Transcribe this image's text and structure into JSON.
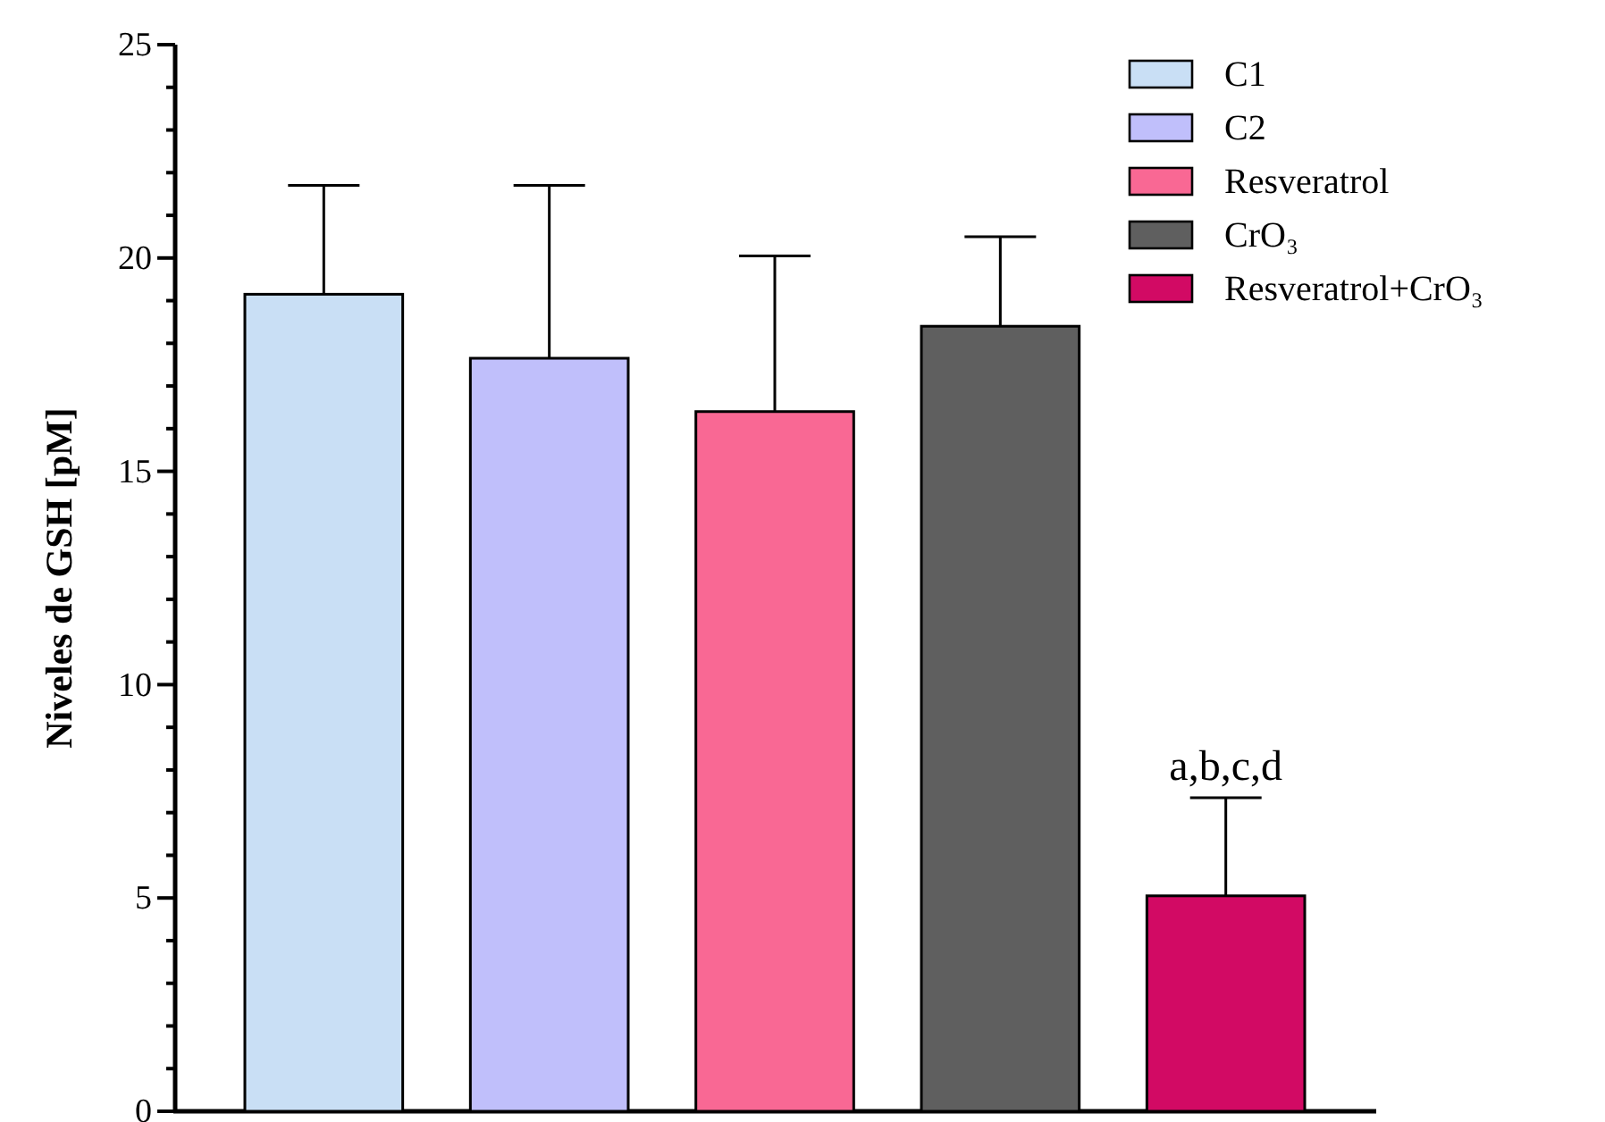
{
  "chart_data": {
    "type": "bar",
    "ylabel": "Niveles de GSH [pM]",
    "categories": [
      null,
      null,
      null,
      null,
      null
    ],
    "series": [
      {
        "name": "C1",
        "color": "#c9dff5",
        "values": [
          19.15,
          null,
          null,
          null,
          null
        ],
        "errors": [
          [
            19.15,
            21.7
          ],
          null,
          null,
          null,
          null
        ]
      },
      {
        "name": "C2",
        "color": "#c0bffb",
        "values": [
          null,
          17.65,
          null,
          null,
          null
        ],
        "errors": [
          null,
          [
            17.65,
            21.7
          ],
          null,
          null,
          null
        ]
      },
      {
        "name": "Resveratrol",
        "color": "#f96894",
        "values": [
          null,
          null,
          16.4,
          null,
          null
        ],
        "errors": [
          null,
          null,
          [
            16.4,
            20.05
          ],
          null,
          null
        ]
      },
      {
        "name": "CrO₃",
        "color": "#5f5f5f",
        "values": [
          null,
          null,
          null,
          18.4,
          null
        ],
        "errors": [
          null,
          null,
          null,
          [
            18.4,
            20.5
          ],
          null
        ]
      },
      {
        "name": "Resveratrol+CrO₃",
        "color": "#d20a64",
        "values": [
          null,
          null,
          null,
          null,
          5.05
        ],
        "errors": [
          null,
          null,
          null,
          null,
          [
            5.05,
            7.35
          ]
        ]
      }
    ],
    "ylim": [
      0,
      25
    ],
    "yticks": [
      0,
      {
        "value": 1,
        "label": null
      },
      {
        "value": 2,
        "label": null
      },
      {
        "value": 3,
        "label": null
      },
      {
        "value": 4,
        "label": null
      },
      5,
      {
        "value": 6,
        "label": null
      },
      {
        "value": 7,
        "label": null
      },
      {
        "value": 8,
        "label": null
      },
      {
        "value": 9,
        "label": null
      },
      10,
      {
        "value": 11,
        "label": null
      },
      {
        "value": 12,
        "label": null
      },
      {
        "value": 13,
        "label": null
      },
      {
        "value": 14,
        "label": null
      },
      15,
      {
        "value": 16,
        "label": null
      },
      {
        "value": 17,
        "label": null
      },
      {
        "value": 18,
        "label": null
      },
      {
        "value": 19,
        "label": null
      },
      20,
      {
        "value": 21,
        "label": null
      },
      {
        "value": 22,
        "label": null
      },
      {
        "value": 23,
        "label": null
      },
      {
        "value": 24,
        "label": null
      },
      25
    ],
    "annotations": [
      {
        "text": "a,b,c,d",
        "y": 7.35
      }
    ],
    "legend": "top right",
    "grid": false
  }
}
